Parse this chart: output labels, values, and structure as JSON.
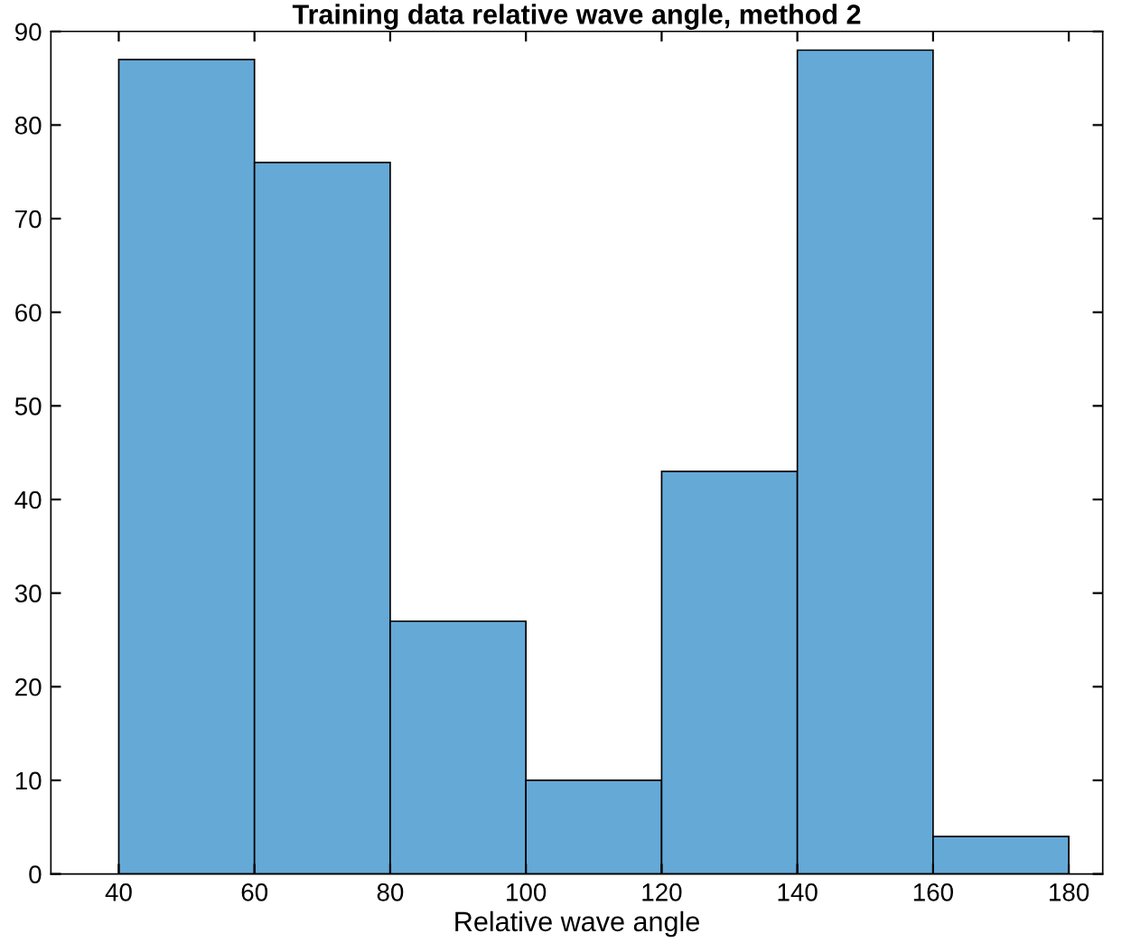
{
  "chart_data": {
    "type": "histogram",
    "title": "Training data relative wave angle, method 2",
    "xlabel": "Relative wave angle",
    "bins": [
      40,
      60,
      80,
      100,
      120,
      140,
      160,
      180
    ],
    "values": [
      87,
      76,
      27,
      10,
      43,
      88,
      4
    ],
    "color": "#65a9d7",
    "xlim": [
      30,
      185
    ],
    "xticks": [
      40,
      60,
      80,
      100,
      120,
      140,
      160,
      180
    ],
    "ylim": [
      0,
      90
    ],
    "yticks": [
      0,
      10,
      20,
      30,
      40,
      50,
      60,
      70,
      80,
      90
    ],
    "grid": false,
    "legend": false
  }
}
